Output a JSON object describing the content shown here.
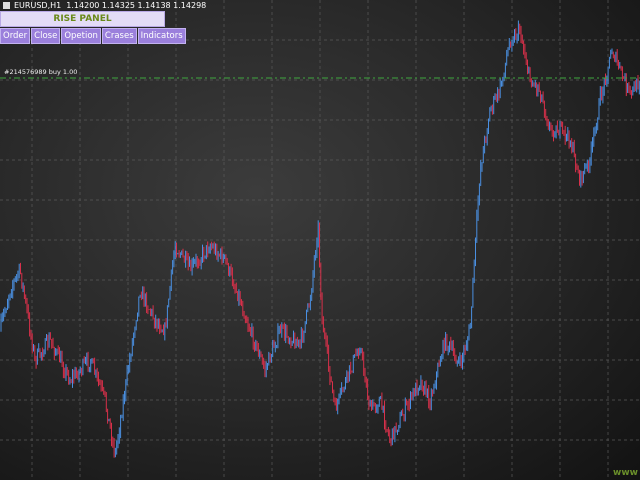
{
  "header": {
    "symbol_info": "EURUSD,H1  1.14200 1.14325 1.14138 1.14298"
  },
  "panel": {
    "title": "RISE PANEL",
    "buttons": [
      "Order",
      "Close",
      "Opetion",
      "Crases",
      "Indicators"
    ]
  },
  "order_line": {
    "label": "#214576989 buy 1.00"
  },
  "watermark": "www"
}
